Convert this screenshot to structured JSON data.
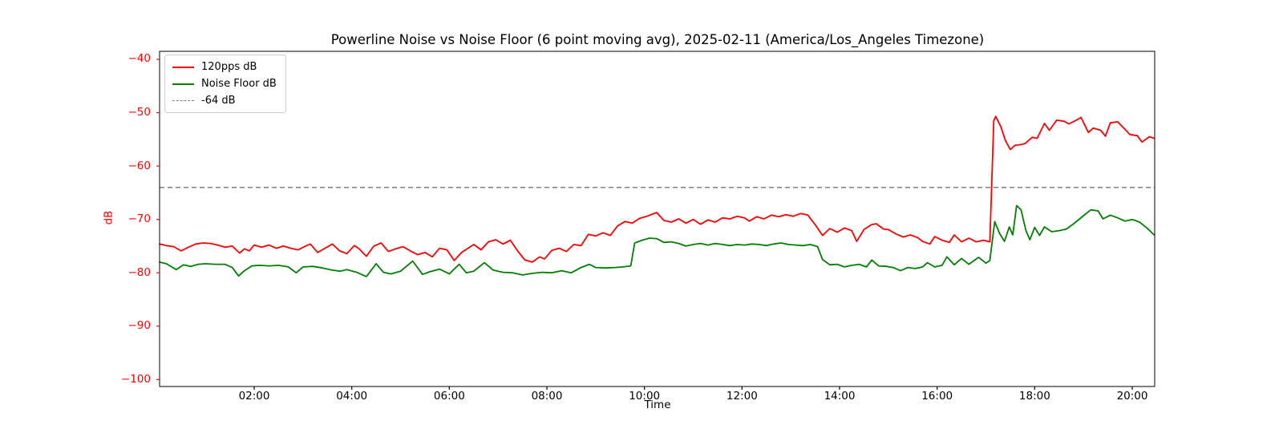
{
  "chart_data": {
    "type": "line",
    "title": "Powerline Noise vs Noise Floor (6 point moving avg), 2025-02-11 (America/Los_Angeles Timezone)",
    "xlabel": "Time",
    "ylabel": "dB",
    "x_unit": "hours_since_midnight",
    "xlim": [
      0.06,
      20.46
    ],
    "ylim": [
      -101.3,
      -38.5
    ],
    "grid": false,
    "background_color": "#ffffff",
    "axes_border_color": "#000000",
    "title_color": "#000000",
    "y_tick_color": "#ff0000",
    "x_tick_color": "#000000",
    "y_ticks": [
      {
        "value": -40,
        "label": "−40"
      },
      {
        "value": -50,
        "label": "−50"
      },
      {
        "value": -60,
        "label": "−60"
      },
      {
        "value": -70,
        "label": "−70"
      },
      {
        "value": -80,
        "label": "−80"
      },
      {
        "value": -90,
        "label": "−90"
      },
      {
        "value": -100,
        "label": "−100"
      }
    ],
    "x_ticks": [
      {
        "value": 2,
        "label": "02:00"
      },
      {
        "value": 4,
        "label": "04:00"
      },
      {
        "value": 6,
        "label": "06:00"
      },
      {
        "value": 8,
        "label": "08:00"
      },
      {
        "value": 10,
        "label": "10:00"
      },
      {
        "value": 12,
        "label": "12:00"
      },
      {
        "value": 14,
        "label": "14:00"
      },
      {
        "value": 16,
        "label": "16:00"
      },
      {
        "value": 18,
        "label": "18:00"
      },
      {
        "value": 20,
        "label": "20:00"
      }
    ],
    "legend": {
      "position": "upper-left",
      "entries": [
        {
          "label": "120pps dB",
          "color": "#ff0000",
          "style": "solid"
        },
        {
          "label": "Noise Floor dB",
          "color": "#008000",
          "style": "solid"
        },
        {
          "label": "-64 dB",
          "color": "#7f7f7f",
          "style": "dashed"
        }
      ]
    },
    "reference_line": {
      "value": -64,
      "color": "#7f7f7f",
      "style": "dashed",
      "label": "-64 dB"
    },
    "series": [
      {
        "name": "120pps dB",
        "color": "#ff0000",
        "points": [
          [
            0.06,
            -74.6
          ],
          [
            0.2,
            -74.9
          ],
          [
            0.35,
            -75.1
          ],
          [
            0.5,
            -75.9
          ],
          [
            0.65,
            -75.2
          ],
          [
            0.8,
            -74.6
          ],
          [
            0.95,
            -74.4
          ],
          [
            1.1,
            -74.5
          ],
          [
            1.25,
            -74.8
          ],
          [
            1.4,
            -75.2
          ],
          [
            1.55,
            -75.0
          ],
          [
            1.7,
            -76.3
          ],
          [
            1.8,
            -75.5
          ],
          [
            1.9,
            -75.9
          ],
          [
            2.0,
            -74.8
          ],
          [
            2.15,
            -75.2
          ],
          [
            2.3,
            -74.8
          ],
          [
            2.45,
            -75.4
          ],
          [
            2.6,
            -75.0
          ],
          [
            2.75,
            -75.4
          ],
          [
            2.9,
            -75.7
          ],
          [
            3.05,
            -75.0
          ],
          [
            3.15,
            -74.6
          ],
          [
            3.3,
            -76.2
          ],
          [
            3.45,
            -75.4
          ],
          [
            3.6,
            -74.6
          ],
          [
            3.75,
            -75.9
          ],
          [
            3.9,
            -76.4
          ],
          [
            4.05,
            -74.9
          ],
          [
            4.15,
            -75.5
          ],
          [
            4.3,
            -76.9
          ],
          [
            4.45,
            -75.0
          ],
          [
            4.6,
            -74.4
          ],
          [
            4.75,
            -76.0
          ],
          [
            4.9,
            -75.5
          ],
          [
            5.05,
            -75.1
          ],
          [
            5.2,
            -75.9
          ],
          [
            5.35,
            -76.6
          ],
          [
            5.5,
            -76.2
          ],
          [
            5.65,
            -77.0
          ],
          [
            5.8,
            -75.4
          ],
          [
            5.95,
            -75.7
          ],
          [
            6.1,
            -77.7
          ],
          [
            6.25,
            -76.2
          ],
          [
            6.4,
            -75.3
          ],
          [
            6.5,
            -74.7
          ],
          [
            6.65,
            -75.7
          ],
          [
            6.8,
            -74.2
          ],
          [
            6.95,
            -73.8
          ],
          [
            7.1,
            -74.6
          ],
          [
            7.25,
            -73.9
          ],
          [
            7.4,
            -75.9
          ],
          [
            7.55,
            -77.6
          ],
          [
            7.7,
            -78.0
          ],
          [
            7.85,
            -77.0
          ],
          [
            7.95,
            -77.4
          ],
          [
            8.1,
            -75.8
          ],
          [
            8.25,
            -75.4
          ],
          [
            8.4,
            -76.0
          ],
          [
            8.55,
            -74.7
          ],
          [
            8.7,
            -74.9
          ],
          [
            8.85,
            -72.8
          ],
          [
            9.0,
            -73.1
          ],
          [
            9.15,
            -72.5
          ],
          [
            9.3,
            -73.0
          ],
          [
            9.45,
            -71.2
          ],
          [
            9.6,
            -70.4
          ],
          [
            9.75,
            -70.7
          ],
          [
            9.9,
            -69.8
          ],
          [
            10.05,
            -69.4
          ],
          [
            10.25,
            -68.7
          ],
          [
            10.4,
            -70.2
          ],
          [
            10.55,
            -70.5
          ],
          [
            10.7,
            -69.9
          ],
          [
            10.85,
            -70.7
          ],
          [
            11.0,
            -70.0
          ],
          [
            11.15,
            -70.9
          ],
          [
            11.3,
            -70.1
          ],
          [
            11.45,
            -70.5
          ],
          [
            11.6,
            -69.7
          ],
          [
            11.75,
            -69.9
          ],
          [
            11.9,
            -69.4
          ],
          [
            12.05,
            -69.7
          ],
          [
            12.15,
            -70.3
          ],
          [
            12.3,
            -69.5
          ],
          [
            12.45,
            -69.9
          ],
          [
            12.6,
            -69.2
          ],
          [
            12.75,
            -69.5
          ],
          [
            12.9,
            -69.1
          ],
          [
            13.05,
            -69.4
          ],
          [
            13.2,
            -68.9
          ],
          [
            13.35,
            -69.2
          ],
          [
            13.5,
            -71.0
          ],
          [
            13.65,
            -73.0
          ],
          [
            13.8,
            -71.7
          ],
          [
            13.95,
            -72.4
          ],
          [
            14.1,
            -71.6
          ],
          [
            14.25,
            -72.1
          ],
          [
            14.35,
            -74.1
          ],
          [
            14.5,
            -71.9
          ],
          [
            14.65,
            -71.0
          ],
          [
            14.75,
            -70.8
          ],
          [
            14.9,
            -71.8
          ],
          [
            15.0,
            -71.9
          ],
          [
            15.15,
            -72.7
          ],
          [
            15.3,
            -73.3
          ],
          [
            15.45,
            -72.9
          ],
          [
            15.6,
            -73.4
          ],
          [
            15.7,
            -74.1
          ],
          [
            15.85,
            -74.6
          ],
          [
            15.95,
            -73.2
          ],
          [
            16.1,
            -73.9
          ],
          [
            16.25,
            -74.3
          ],
          [
            16.35,
            -72.9
          ],
          [
            16.5,
            -74.2
          ],
          [
            16.65,
            -73.5
          ],
          [
            16.8,
            -74.2
          ],
          [
            16.95,
            -73.9
          ],
          [
            17.08,
            -74.2
          ],
          [
            17.16,
            -51.5
          ],
          [
            17.2,
            -50.7
          ],
          [
            17.3,
            -52.5
          ],
          [
            17.4,
            -55.2
          ],
          [
            17.5,
            -56.9
          ],
          [
            17.6,
            -56.1
          ],
          [
            17.7,
            -56.0
          ],
          [
            17.8,
            -55.8
          ],
          [
            17.95,
            -54.6
          ],
          [
            18.05,
            -54.8
          ],
          [
            18.2,
            -52.0
          ],
          [
            18.3,
            -53.3
          ],
          [
            18.45,
            -51.4
          ],
          [
            18.6,
            -51.6
          ],
          [
            18.7,
            -52.1
          ],
          [
            18.85,
            -51.4
          ],
          [
            18.95,
            -50.9
          ],
          [
            19.1,
            -53.7
          ],
          [
            19.2,
            -52.9
          ],
          [
            19.35,
            -53.3
          ],
          [
            19.45,
            -54.4
          ],
          [
            19.55,
            -51.9
          ],
          [
            19.7,
            -51.7
          ],
          [
            19.85,
            -53.1
          ],
          [
            19.95,
            -54.1
          ],
          [
            20.1,
            -54.3
          ],
          [
            20.2,
            -55.5
          ],
          [
            20.35,
            -54.5
          ],
          [
            20.45,
            -54.8
          ]
        ]
      },
      {
        "name": "Noise Floor dB",
        "color": "#008000",
        "points": [
          [
            0.06,
            -78.0
          ],
          [
            0.2,
            -78.3
          ],
          [
            0.4,
            -79.4
          ],
          [
            0.55,
            -78.5
          ],
          [
            0.7,
            -78.8
          ],
          [
            0.85,
            -78.4
          ],
          [
            1.0,
            -78.3
          ],
          [
            1.2,
            -78.4
          ],
          [
            1.4,
            -78.4
          ],
          [
            1.55,
            -79.0
          ],
          [
            1.68,
            -80.6
          ],
          [
            1.8,
            -79.6
          ],
          [
            1.95,
            -78.7
          ],
          [
            2.1,
            -78.6
          ],
          [
            2.3,
            -78.7
          ],
          [
            2.5,
            -78.6
          ],
          [
            2.7,
            -78.9
          ],
          [
            2.86,
            -80.0
          ],
          [
            3.0,
            -78.9
          ],
          [
            3.2,
            -78.8
          ],
          [
            3.4,
            -79.1
          ],
          [
            3.6,
            -79.5
          ],
          [
            3.76,
            -79.7
          ],
          [
            3.9,
            -79.4
          ],
          [
            4.1,
            -79.9
          ],
          [
            4.3,
            -80.7
          ],
          [
            4.5,
            -78.3
          ],
          [
            4.65,
            -79.9
          ],
          [
            4.8,
            -80.2
          ],
          [
            5.0,
            -79.7
          ],
          [
            5.25,
            -77.8
          ],
          [
            5.45,
            -80.3
          ],
          [
            5.6,
            -79.8
          ],
          [
            5.8,
            -79.3
          ],
          [
            6.0,
            -80.2
          ],
          [
            6.2,
            -78.4
          ],
          [
            6.35,
            -80.0
          ],
          [
            6.5,
            -79.7
          ],
          [
            6.72,
            -78.1
          ],
          [
            6.9,
            -79.5
          ],
          [
            7.1,
            -79.9
          ],
          [
            7.3,
            -80.0
          ],
          [
            7.5,
            -80.4
          ],
          [
            7.7,
            -80.1
          ],
          [
            7.9,
            -79.9
          ],
          [
            8.1,
            -80.0
          ],
          [
            8.3,
            -79.6
          ],
          [
            8.5,
            -80.0
          ],
          [
            8.7,
            -79.0
          ],
          [
            8.87,
            -78.4
          ],
          [
            9.0,
            -79.0
          ],
          [
            9.2,
            -79.1
          ],
          [
            9.4,
            -79.0
          ],
          [
            9.55,
            -78.9
          ],
          [
            9.72,
            -78.7
          ],
          [
            9.8,
            -74.4
          ],
          [
            9.95,
            -73.9
          ],
          [
            10.1,
            -73.5
          ],
          [
            10.25,
            -73.6
          ],
          [
            10.4,
            -74.3
          ],
          [
            10.55,
            -74.2
          ],
          [
            10.7,
            -74.5
          ],
          [
            10.85,
            -75.0
          ],
          [
            11.0,
            -74.7
          ],
          [
            11.15,
            -74.5
          ],
          [
            11.3,
            -74.8
          ],
          [
            11.45,
            -74.5
          ],
          [
            11.6,
            -74.7
          ],
          [
            11.75,
            -74.9
          ],
          [
            11.9,
            -74.7
          ],
          [
            12.05,
            -74.8
          ],
          [
            12.2,
            -74.6
          ],
          [
            12.35,
            -74.7
          ],
          [
            12.5,
            -74.9
          ],
          [
            12.65,
            -74.6
          ],
          [
            12.8,
            -74.4
          ],
          [
            12.95,
            -74.7
          ],
          [
            13.1,
            -74.8
          ],
          [
            13.25,
            -74.9
          ],
          [
            13.4,
            -74.7
          ],
          [
            13.55,
            -75.1
          ],
          [
            13.65,
            -77.5
          ],
          [
            13.8,
            -78.5
          ],
          [
            13.95,
            -78.4
          ],
          [
            14.1,
            -78.9
          ],
          [
            14.25,
            -78.6
          ],
          [
            14.4,
            -78.4
          ],
          [
            14.55,
            -78.9
          ],
          [
            14.66,
            -77.6
          ],
          [
            14.8,
            -78.7
          ],
          [
            14.95,
            -78.8
          ],
          [
            15.1,
            -79.0
          ],
          [
            15.25,
            -79.6
          ],
          [
            15.4,
            -79.0
          ],
          [
            15.55,
            -79.2
          ],
          [
            15.7,
            -78.9
          ],
          [
            15.8,
            -78.1
          ],
          [
            15.95,
            -78.9
          ],
          [
            16.1,
            -78.6
          ],
          [
            16.2,
            -77.0
          ],
          [
            16.35,
            -78.5
          ],
          [
            16.5,
            -77.3
          ],
          [
            16.65,
            -78.4
          ],
          [
            16.85,
            -77.1
          ],
          [
            17.0,
            -78.2
          ],
          [
            17.08,
            -77.7
          ],
          [
            17.18,
            -70.4
          ],
          [
            17.28,
            -72.6
          ],
          [
            17.38,
            -74.1
          ],
          [
            17.48,
            -71.4
          ],
          [
            17.55,
            -72.9
          ],
          [
            17.63,
            -67.4
          ],
          [
            17.72,
            -68.2
          ],
          [
            17.82,
            -72.1
          ],
          [
            17.9,
            -73.8
          ],
          [
            18.0,
            -71.5
          ],
          [
            18.1,
            -73.0
          ],
          [
            18.2,
            -71.4
          ],
          [
            18.35,
            -72.3
          ],
          [
            18.5,
            -72.1
          ],
          [
            18.65,
            -71.8
          ],
          [
            18.8,
            -70.8
          ],
          [
            19.0,
            -69.3
          ],
          [
            19.15,
            -68.2
          ],
          [
            19.3,
            -68.4
          ],
          [
            19.4,
            -69.9
          ],
          [
            19.55,
            -69.2
          ],
          [
            19.7,
            -69.7
          ],
          [
            19.85,
            -70.3
          ],
          [
            20.0,
            -70.0
          ],
          [
            20.15,
            -70.5
          ],
          [
            20.3,
            -71.6
          ],
          [
            20.45,
            -72.9
          ]
        ]
      }
    ]
  }
}
